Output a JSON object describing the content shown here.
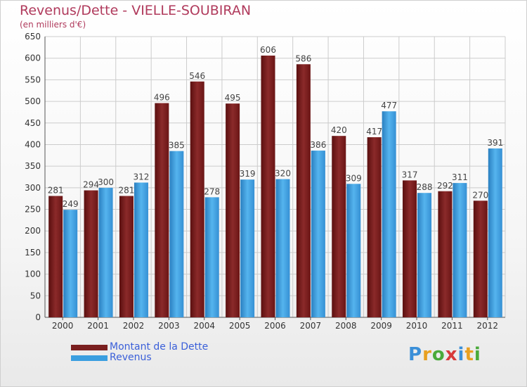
{
  "colors": {
    "dette": "#7a1f1f",
    "revenus": "#3a9ee0",
    "title": "#b03a5c",
    "legend_text": "#3a5fd9"
  },
  "chart_data": {
    "type": "bar",
    "title": "Revenus/Dette - VIELLE-SOUBIRAN",
    "subtitle": "(en milliers d'€)",
    "xlabel": "",
    "ylabel": "",
    "ylim": [
      0,
      650
    ],
    "yticks": [
      0,
      50,
      100,
      150,
      200,
      250,
      300,
      350,
      400,
      450,
      500,
      550,
      600,
      650
    ],
    "grid": true,
    "legend_position": "bottom-left",
    "categories": [
      "2000",
      "2001",
      "2002",
      "2003",
      "2004",
      "2005",
      "2006",
      "2007",
      "2008",
      "2009",
      "2010",
      "2011",
      "2012"
    ],
    "series": [
      {
        "name": "Montant de la Dette",
        "values": [
          281,
          294,
          281,
          496,
          546,
          495,
          606,
          586,
          420,
          417,
          317,
          292,
          270
        ]
      },
      {
        "name": "Revenus",
        "values": [
          249,
          300,
          312,
          385,
          278,
          319,
          320,
          386,
          309,
          477,
          288,
          311,
          391
        ]
      }
    ]
  },
  "logo": {
    "letters": [
      {
        "ch": "P",
        "color": "#3a8fd8"
      },
      {
        "ch": "r",
        "color": "#e8a020"
      },
      {
        "ch": "o",
        "color": "#4aaa3a"
      },
      {
        "ch": "x",
        "color": "#d83a3a"
      },
      {
        "ch": "i",
        "color": "#3a8fd8"
      },
      {
        "ch": "t",
        "color": "#e8a020"
      },
      {
        "ch": "i",
        "color": "#4aaa3a"
      }
    ]
  }
}
